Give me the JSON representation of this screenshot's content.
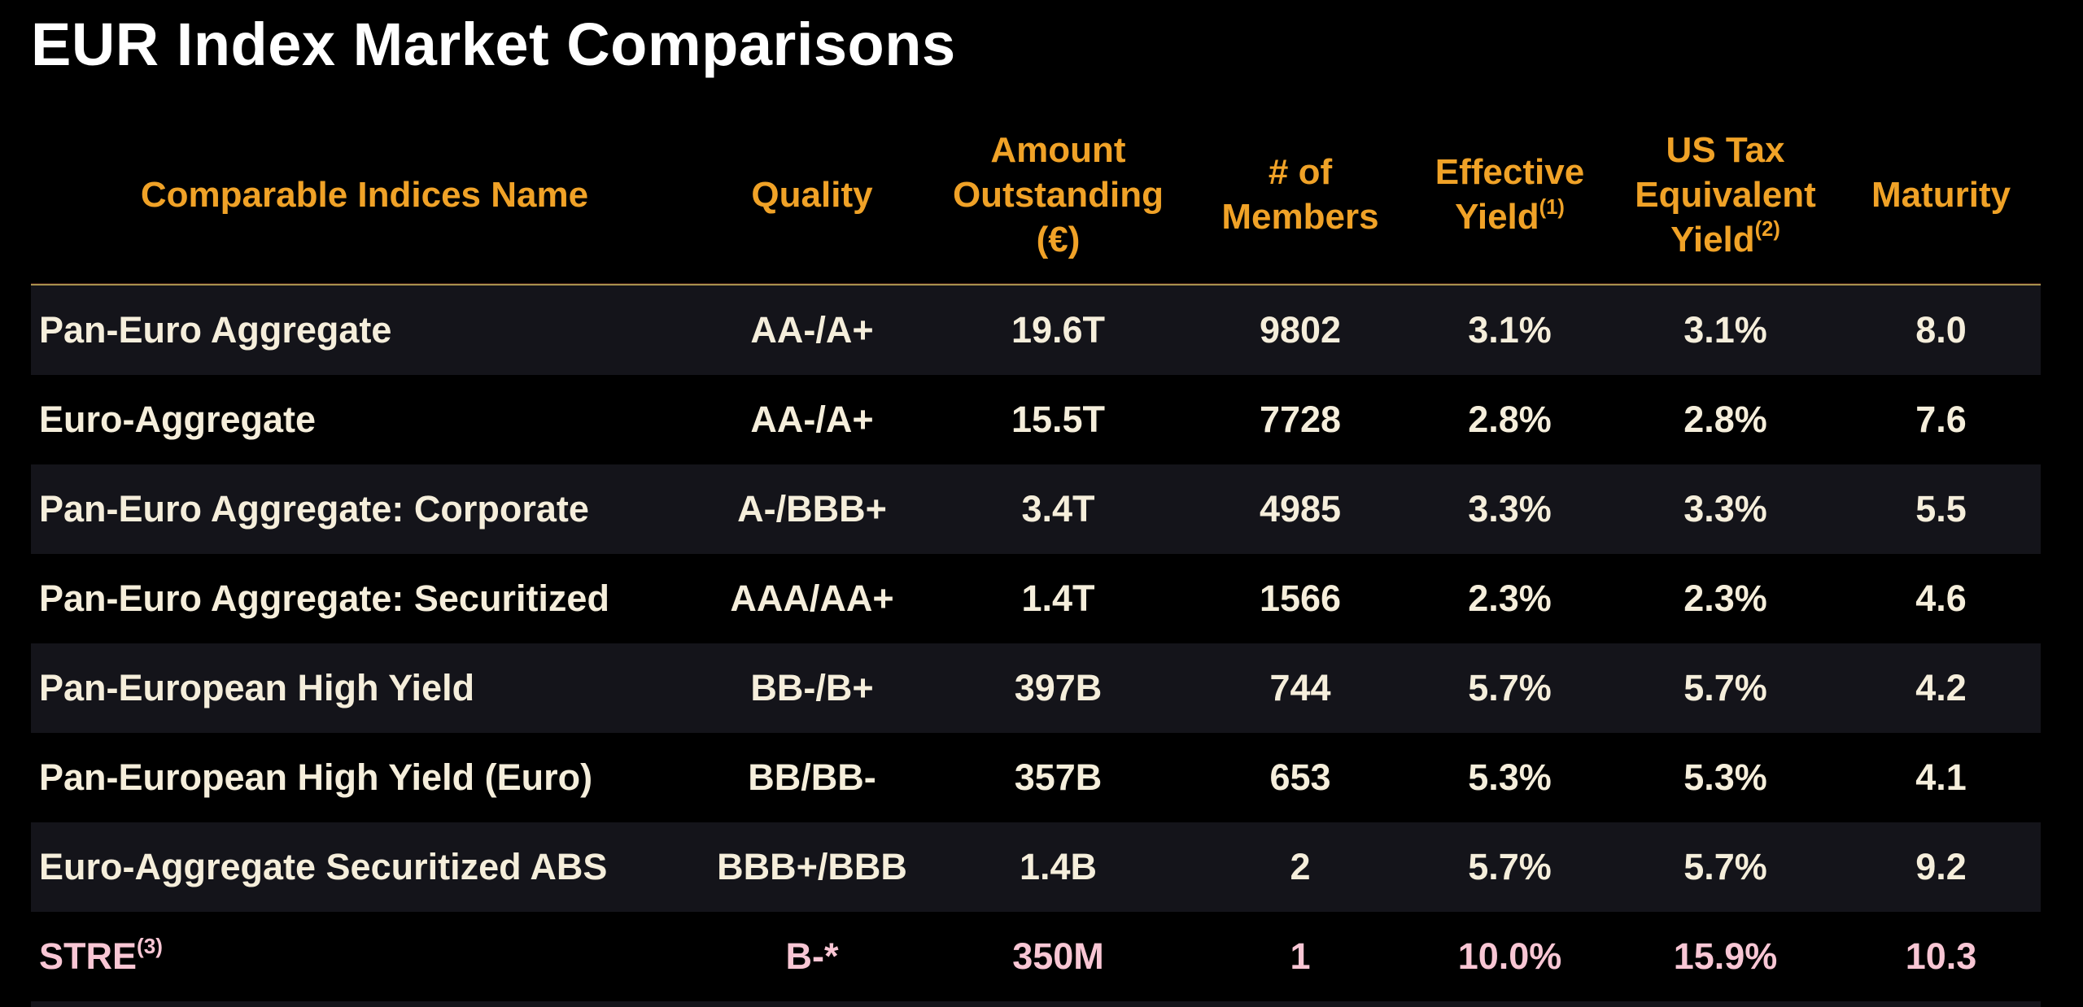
{
  "title": "EUR Index Market Comparisons",
  "colors": {
    "background": "#000000",
    "title_text": "#FFFFFF",
    "header_orange": "#F0A227",
    "divider_gold": "#A8914E",
    "body_text": "#F5EEDB",
    "row_stripe": "#14141A",
    "highlight_pink": "#F8C6D4"
  },
  "table": {
    "columns": [
      {
        "id": "name",
        "label": "Comparable Indices Name"
      },
      {
        "id": "quality",
        "label": "Quality"
      },
      {
        "id": "amount_outstanding",
        "line1": "Amount",
        "line2": "Outstanding",
        "line3": "(€)"
      },
      {
        "id": "members",
        "line1": "# of",
        "line2": "Members"
      },
      {
        "id": "effective_yield",
        "line1": "Effective",
        "line2": "Yield",
        "sup": "(1)"
      },
      {
        "id": "us_tax_equivalent_yield",
        "line1": "US Tax",
        "line2": "Equivalent",
        "line3": "Yield",
        "sup": "(2)"
      },
      {
        "id": "maturity",
        "label": "Maturity"
      }
    ],
    "rows": [
      {
        "name": "Pan-Euro Aggregate",
        "quality": "AA-/A+",
        "amount_outstanding": "19.6T",
        "members": "9802",
        "effective_yield": "3.1%",
        "us_tax_equivalent_yield": "3.1%",
        "maturity": "8.0"
      },
      {
        "name": "Euro-Aggregate",
        "quality": "AA-/A+",
        "amount_outstanding": "15.5T",
        "members": "7728",
        "effective_yield": "2.8%",
        "us_tax_equivalent_yield": "2.8%",
        "maturity": "7.6"
      },
      {
        "name": "Pan-Euro Aggregate: Corporate",
        "quality": "A-/BBB+",
        "amount_outstanding": "3.4T",
        "members": "4985",
        "effective_yield": "3.3%",
        "us_tax_equivalent_yield": "3.3%",
        "maturity": "5.5"
      },
      {
        "name": "Pan-Euro Aggregate: Securitized",
        "quality": "AAA/AA+",
        "amount_outstanding": "1.4T",
        "members": "1566",
        "effective_yield": "2.3%",
        "us_tax_equivalent_yield": "2.3%",
        "maturity": "4.6"
      },
      {
        "name": "Pan-European High Yield",
        "quality": "BB-/B+",
        "amount_outstanding": "397B",
        "members": "744",
        "effective_yield": "5.7%",
        "us_tax_equivalent_yield": "5.7%",
        "maturity": "4.2"
      },
      {
        "name": "Pan-European High Yield (Euro)",
        "quality": "BB/BB-",
        "amount_outstanding": "357B",
        "members": "653",
        "effective_yield": "5.3%",
        "us_tax_equivalent_yield": "5.3%",
        "maturity": "4.1"
      },
      {
        "name": "Euro-Aggregate Securitized ABS",
        "quality": "BBB+/BBB",
        "amount_outstanding": "1.4B",
        "members": "2",
        "effective_yield": "5.7%",
        "us_tax_equivalent_yield": "5.7%",
        "maturity": "9.2"
      },
      {
        "name": "STRE",
        "name_sup": "(3)",
        "quality": "B-*",
        "amount_outstanding": "350M",
        "members": "1",
        "effective_yield": "10.0%",
        "us_tax_equivalent_yield": "15.9%",
        "maturity": "10.3",
        "highlight": true
      }
    ]
  }
}
